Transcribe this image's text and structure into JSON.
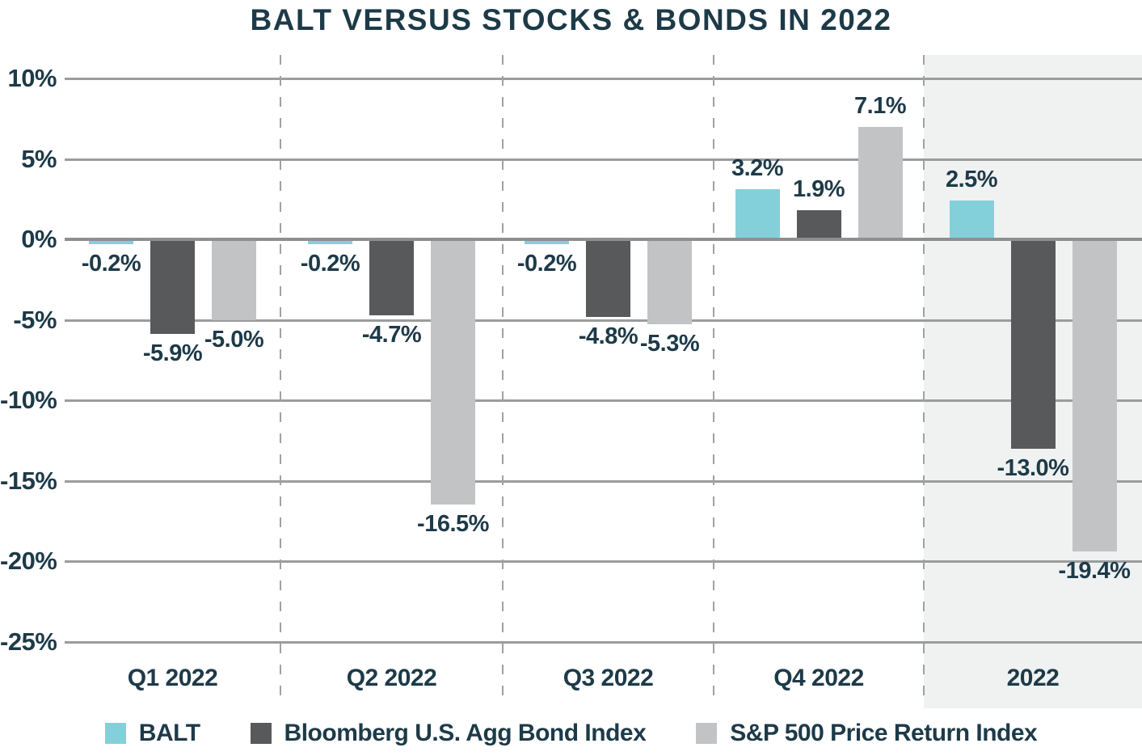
{
  "chart_data": {
    "type": "bar",
    "title": "BALT VERSUS STOCKS & BONDS IN 2022",
    "categories": [
      "Q1 2022",
      "Q2 2022",
      "Q3 2022",
      "Q4 2022",
      "2022"
    ],
    "highlighted_category": "2022",
    "series": [
      {
        "key": "balt",
        "name": "BALT",
        "color": "#84d0da",
        "values": [
          -0.2,
          -0.2,
          -0.2,
          3.2,
          2.5
        ],
        "labels": [
          "-0.2%",
          "-0.2%",
          "-0.2%",
          "3.2%",
          "2.5%"
        ]
      },
      {
        "key": "agg-bond",
        "name": "Bloomberg U.S. Agg Bond Index",
        "color": "#58595b",
        "values": [
          -5.9,
          -4.7,
          -4.8,
          1.9,
          -13.0
        ],
        "labels": [
          "-5.9%",
          "-4.7%",
          "-4.8%",
          "1.9%",
          "-13.0%"
        ]
      },
      {
        "key": "sp500",
        "name": "S&P 500 Price Return Index",
        "color": "#c2c3c5",
        "values": [
          -5.0,
          -16.5,
          -5.3,
          7.1,
          -19.4
        ],
        "labels": [
          "-5.0%",
          "-16.5%",
          "-5.3%",
          "7.1%",
          "-19.4%"
        ]
      }
    ],
    "y_axis": {
      "ticks": [
        {
          "label": "10%",
          "value": 10
        },
        {
          "label": "5%",
          "value": 5
        },
        {
          "label": "0%",
          "value": 0
        },
        {
          "label": "-5%",
          "value": -5
        },
        {
          "label": "-10%",
          "value": -10
        },
        {
          "label": "-15%",
          "value": -15
        },
        {
          "label": "-20%",
          "value": -20
        },
        {
          "label": "-25%",
          "value": -25
        }
      ]
    },
    "ylim": [
      -27,
      11.5
    ],
    "grid": "horizontal solid lines, dashed vertical category separators",
    "legend_position": "bottom",
    "styles": {
      "text_color": "#1d3a48",
      "grid_color": "#9b9c9e",
      "zero_line_color": "#8e8f91",
      "separator_color": "#a0a1a3",
      "highlight_bg": "#f0f1f1"
    }
  }
}
